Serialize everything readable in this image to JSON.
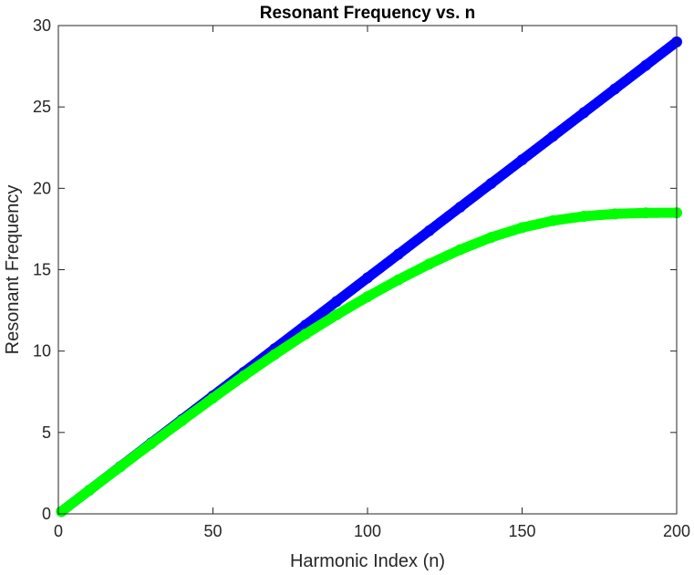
{
  "chart_data": {
    "type": "scatter",
    "title": "Resonant Frequency vs. n",
    "xlabel": "Harmonic Index (n)",
    "ylabel": "Resonant Frequency",
    "xlim": [
      0,
      200
    ],
    "ylim": [
      0,
      30
    ],
    "xticks": [
      0,
      50,
      100,
      150,
      200
    ],
    "yticks": [
      0,
      5,
      10,
      15,
      20,
      25,
      30
    ],
    "grid": false,
    "legend": "none",
    "x": [
      1,
      10,
      20,
      30,
      40,
      50,
      60,
      70,
      80,
      90,
      100,
      110,
      120,
      130,
      140,
      150,
      160,
      170,
      180,
      190,
      200
    ],
    "series": [
      {
        "color": "#0000ff",
        "marker": "filled-circle",
        "values": [
          0.145,
          1.45,
          2.9,
          4.35,
          5.8,
          7.25,
          8.7,
          10.15,
          11.6,
          13.05,
          14.5,
          15.95,
          17.4,
          18.85,
          20.3,
          21.75,
          23.2,
          24.65,
          26.1,
          27.55,
          29.0
        ]
      },
      {
        "color": "#00ff00",
        "marker": "filled-circle",
        "values": [
          0.145,
          1.449,
          2.888,
          4.313,
          5.723,
          7.115,
          8.479,
          9.795,
          11.047,
          12.228,
          13.34,
          14.383,
          15.353,
          16.232,
          16.987,
          17.585,
          18.013,
          18.283,
          18.43,
          18.49,
          18.5
        ]
      }
    ]
  }
}
